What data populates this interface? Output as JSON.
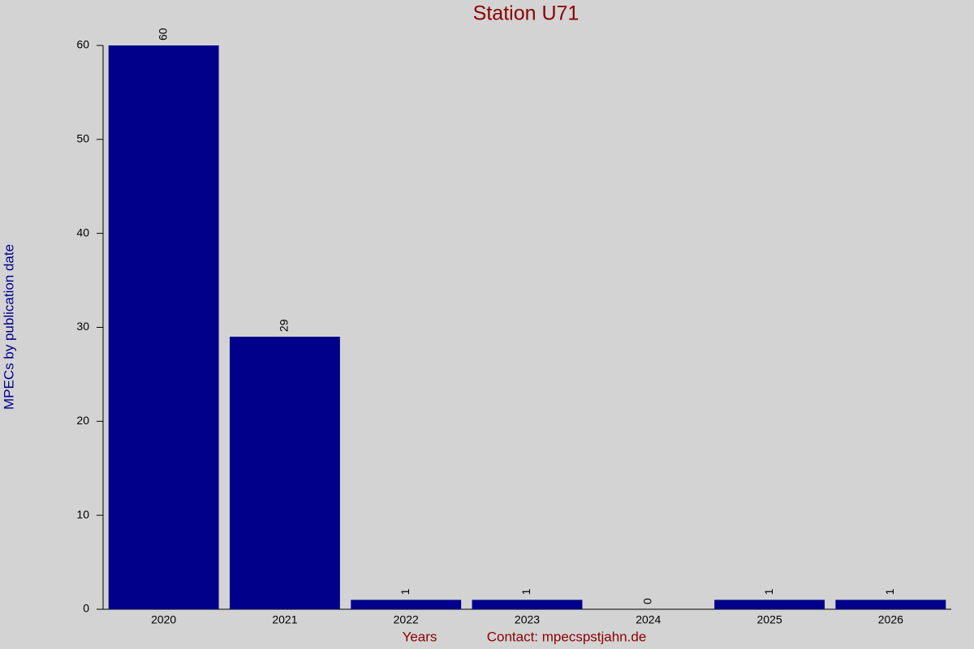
{
  "chart_data": {
    "type": "bar",
    "title": "Station U71",
    "y_label": "MPECs by publication date",
    "x_label": "Years",
    "contact": "Contact: mpecspstjahn.de",
    "categories": [
      "2020",
      "2021",
      "2022",
      "2023",
      "2024",
      "2025",
      "2026"
    ],
    "values": [
      60,
      29,
      1,
      1,
      0,
      1,
      1
    ],
    "color": "#00008b",
    "ylim": [
      0,
      60
    ],
    "yticks": [
      0,
      10,
      20,
      30,
      40,
      50,
      60
    ],
    "grid": false
  }
}
